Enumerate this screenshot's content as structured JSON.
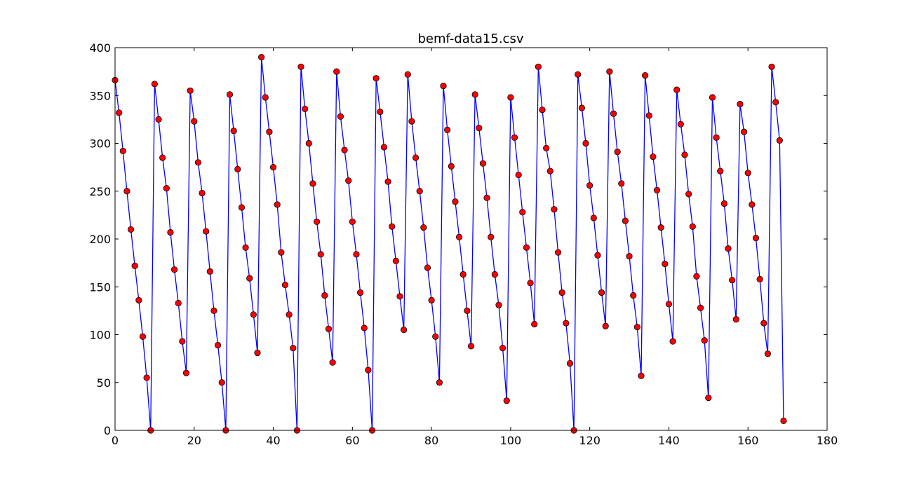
{
  "chart_data": {
    "type": "line",
    "title": "bemf-data15.csv",
    "xlabel": "",
    "ylabel": "",
    "xlim": [
      0,
      180
    ],
    "ylim": [
      0,
      400
    ],
    "x_ticks": [
      0,
      20,
      40,
      60,
      80,
      100,
      120,
      140,
      160,
      180
    ],
    "y_ticks": [
      0,
      50,
      100,
      150,
      200,
      250,
      300,
      350,
      400
    ],
    "x_tick_labels": [
      "0",
      "20",
      "40",
      "60",
      "80",
      "100",
      "120",
      "140",
      "160",
      "180"
    ],
    "y_tick_labels": [
      "0",
      "50",
      "100",
      "150",
      "200",
      "250",
      "300",
      "350",
      "400"
    ],
    "grid": false,
    "legend": "none",
    "line_color": "#0000ff",
    "marker_color": "#ff0000",
    "series": [
      {
        "x": [
          0,
          1,
          2,
          3,
          4,
          5,
          6,
          7,
          8,
          9,
          10,
          11,
          12,
          13,
          14,
          15,
          16,
          17,
          18,
          19,
          20,
          21,
          22,
          23,
          24,
          25,
          26,
          27,
          28,
          29,
          30,
          31,
          32,
          33,
          34,
          35,
          36,
          37,
          38,
          39,
          40,
          41,
          42,
          43,
          44,
          45,
          46,
          47,
          48,
          49,
          50,
          51,
          52,
          53,
          54,
          55,
          56,
          57,
          58,
          59,
          60,
          61,
          62,
          63,
          64,
          65,
          66,
          67,
          68,
          69,
          70,
          71,
          72,
          73,
          74,
          75,
          76,
          77,
          78,
          79,
          80,
          81,
          82,
          83,
          84,
          85,
          86,
          87,
          88,
          89,
          90,
          91,
          92,
          93,
          94,
          95,
          96,
          97,
          98,
          99,
          100,
          101,
          102,
          103,
          104,
          105,
          106,
          107,
          108,
          109,
          110,
          111,
          112,
          113,
          114,
          115,
          116,
          117,
          118,
          119,
          120,
          121,
          122,
          123,
          124,
          125,
          126,
          127,
          128,
          129,
          130,
          131,
          132,
          133,
          134,
          135,
          136,
          137,
          138,
          139,
          140,
          141,
          142,
          143,
          144,
          145,
          146,
          147,
          148,
          149,
          150,
          151,
          152,
          153,
          154,
          155,
          156,
          157,
          158,
          159,
          160,
          161,
          162,
          163,
          164,
          165,
          166,
          167,
          168,
          169
        ],
        "y": [
          366,
          332,
          292,
          250,
          210,
          172,
          136,
          98,
          55,
          0,
          362,
          325,
          285,
          253,
          207,
          168,
          133,
          93,
          60,
          355,
          323,
          280,
          248,
          208,
          166,
          125,
          89,
          50,
          0,
          351,
          313,
          273,
          233,
          191,
          159,
          121,
          81,
          390,
          348,
          312,
          275,
          236,
          186,
          152,
          121,
          86,
          0,
          380,
          336,
          300,
          258,
          218,
          184,
          141,
          106,
          71,
          375,
          328,
          293,
          261,
          218,
          184,
          144,
          107,
          63,
          0,
          368,
          333,
          296,
          260,
          213,
          177,
          140,
          105,
          372,
          323,
          285,
          250,
          212,
          170,
          136,
          98,
          50,
          360,
          314,
          276,
          239,
          202,
          163,
          125,
          88,
          351,
          316,
          279,
          243,
          202,
          163,
          131,
          86,
          31,
          348,
          306,
          267,
          228,
          191,
          154,
          111,
          380,
          335,
          295,
          271,
          231,
          186,
          144,
          112,
          70,
          0,
          372,
          337,
          300,
          256,
          222,
          183,
          144,
          109,
          375,
          331,
          291,
          258,
          219,
          182,
          141,
          108,
          57,
          371,
          329,
          286,
          251,
          212,
          174,
          132,
          93,
          356,
          320,
          288,
          247,
          213,
          161,
          128,
          94,
          34,
          348,
          306,
          271,
          237,
          190,
          157,
          116,
          341,
          312,
          269,
          236,
          201,
          158,
          112,
          80,
          380,
          343,
          303,
          10
        ]
      }
    ]
  }
}
